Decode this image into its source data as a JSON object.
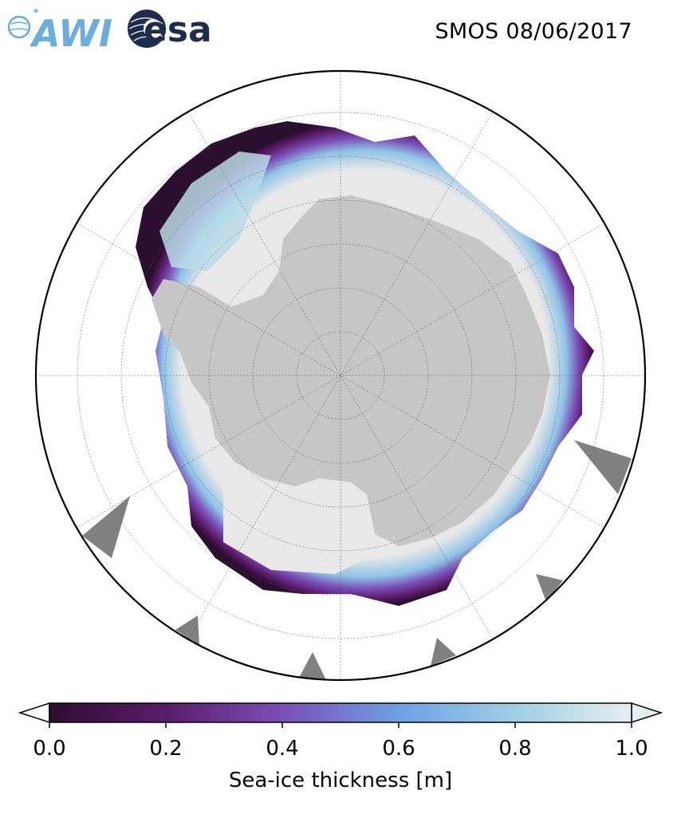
{
  "header": {
    "logos": [
      {
        "name": "AWI",
        "text": "AWI"
      },
      {
        "name": "ESA",
        "text": "esa"
      }
    ],
    "title": "SMOS 08/06/2017"
  },
  "map": {
    "projection": "south-polar-stereographic",
    "region": "Antarctica / Southern Ocean",
    "colors": {
      "land": "#c6c6c6",
      "no_data_sectors": "#808080",
      "thick_ice": "#e8e8e8",
      "ocean": "#ffffff"
    }
  },
  "colorbar": {
    "label": "Sea-ice thickness [m]",
    "ticks": [
      "0.0",
      "0.2",
      "0.4",
      "0.6",
      "0.8",
      "1.0"
    ],
    "range": [
      0.0,
      1.0
    ],
    "extend": "both",
    "colormap_stops": [
      {
        "value": 0.0,
        "color": "#2b0f2e"
      },
      {
        "value": 0.2,
        "color": "#5c1c6b"
      },
      {
        "value": 0.4,
        "color": "#7b4fb8"
      },
      {
        "value": 0.6,
        "color": "#6e9fe6"
      },
      {
        "value": 0.8,
        "color": "#9fcfe3"
      },
      {
        "value": 1.0,
        "color": "#e4eeef"
      }
    ]
  }
}
